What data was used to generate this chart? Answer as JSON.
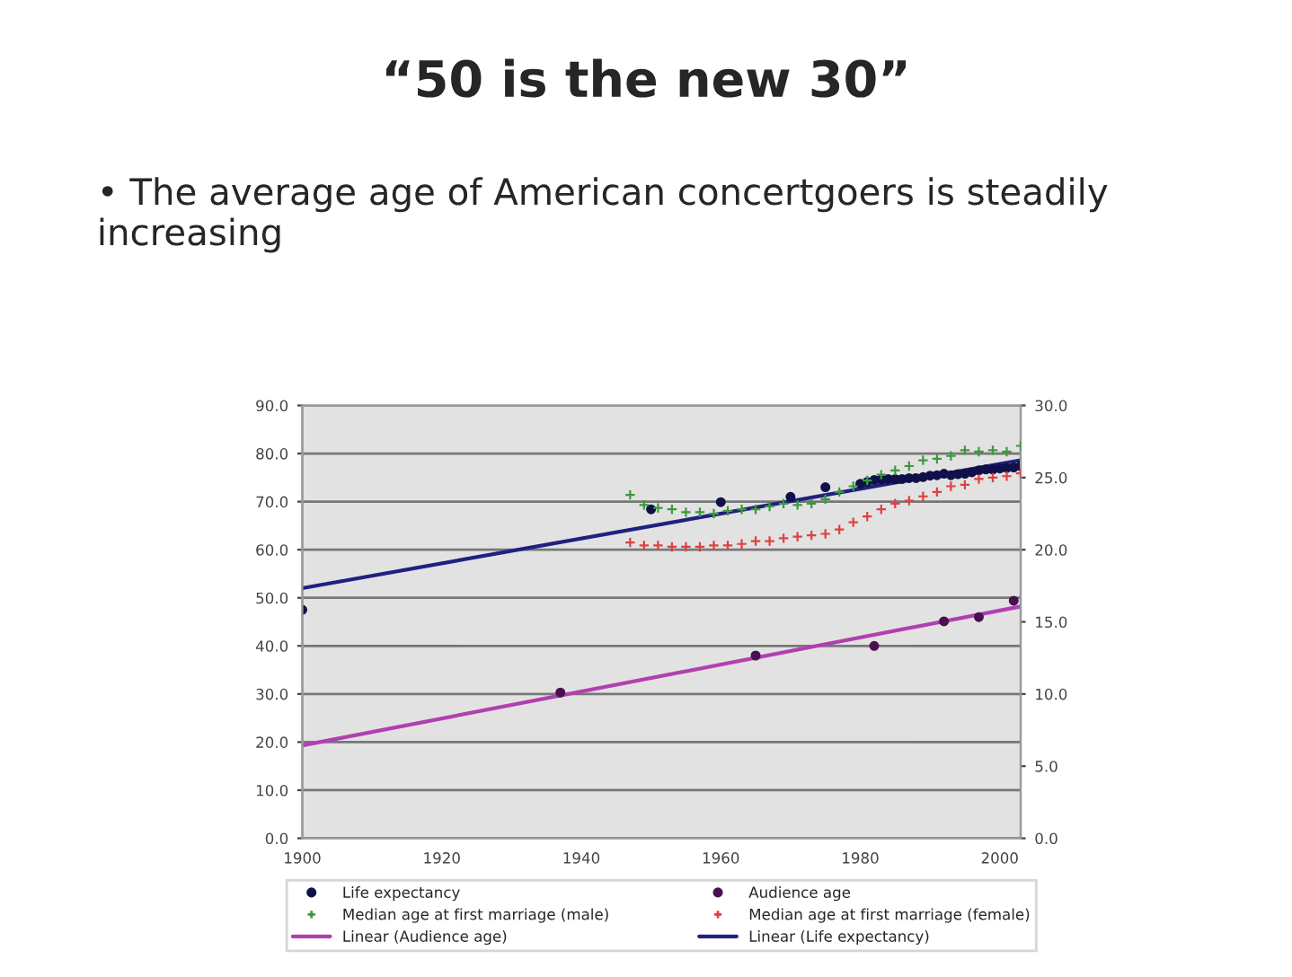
{
  "chart_data": {
    "type": "scatter",
    "title": "“50 is the new 30”",
    "subtitle": "• The average age of American concertgoers is steadily increasing",
    "xlim": [
      1900,
      2003
    ],
    "xticks": [
      1900,
      1920,
      1940,
      1960,
      1980,
      2000
    ],
    "ylim": [
      0,
      90
    ],
    "yticks": [
      {
        "value": 0,
        "label": "0.0"
      },
      {
        "value": 10,
        "label": "10.0"
      },
      {
        "value": 20,
        "label": "20.0"
      },
      {
        "value": 30,
        "label": "30.0"
      },
      {
        "value": 40,
        "label": "40.0"
      },
      {
        "value": 50,
        "label": "50.0"
      },
      {
        "value": 60,
        "label": "60.0"
      },
      {
        "value": 70,
        "label": "70.0"
      },
      {
        "value": 80,
        "label": "80.0"
      },
      {
        "value": 90,
        "label": "90.0"
      }
    ],
    "y2lim": [
      0,
      30
    ],
    "y2ticks": [
      {
        "value": 0,
        "label": "0.0"
      },
      {
        "value": 5,
        "label": "5.0"
      },
      {
        "value": 10,
        "label": "10.0"
      },
      {
        "value": 15,
        "label": "15.0"
      },
      {
        "value": 20,
        "label": "20.0"
      },
      {
        "value": 25,
        "label": "25.0"
      },
      {
        "value": 30,
        "label": "30.0"
      }
    ],
    "grid": "y",
    "legend": "bottom",
    "series": [
      {
        "name": "Life expectancy",
        "marker": "circle",
        "color": "#10104a",
        "x": [
          1900,
          1950,
          1960,
          1970,
          1975,
          1980,
          1981,
          1982,
          1983,
          1984,
          1985,
          1986,
          1987,
          1988,
          1989,
          1990,
          1991,
          1992,
          1993,
          1994,
          1995,
          1996,
          1997,
          1998,
          1999,
          2000,
          2001,
          2002,
          2003
        ],
        "values": [
          47.5,
          68.4,
          69.9,
          71.0,
          73.0,
          73.7,
          74.1,
          74.5,
          74.6,
          74.7,
          74.7,
          74.7,
          74.9,
          74.9,
          75.1,
          75.4,
          75.5,
          75.8,
          75.5,
          75.7,
          75.8,
          76.1,
          76.5,
          76.7,
          76.7,
          76.9,
          77.0,
          77.1,
          77.4
        ]
      },
      {
        "name": "Audience age",
        "marker": "circle",
        "color": "#4a1050",
        "x": [
          1937,
          1965,
          1982,
          1992,
          1997,
          2002
        ],
        "values": [
          30.3,
          38.0,
          40.0,
          45.1,
          46.0,
          49.4
        ]
      },
      {
        "name": "Median age at first marriage (male)",
        "marker": "cross",
        "axis": "y2",
        "color": "#3a9a3a",
        "x": [
          1947,
          1949,
          1951,
          1953,
          1955,
          1957,
          1959,
          1961,
          1963,
          1965,
          1967,
          1969,
          1971,
          1973,
          1975,
          1977,
          1979,
          1981,
          1983,
          1985,
          1987,
          1989,
          1991,
          1993,
          1995,
          1997,
          1999,
          2001,
          2003
        ],
        "values": [
          23.8,
          23.1,
          22.9,
          22.8,
          22.6,
          22.6,
          22.5,
          22.7,
          22.8,
          22.8,
          23.0,
          23.2,
          23.1,
          23.2,
          23.5,
          24.0,
          24.4,
          24.8,
          25.2,
          25.5,
          25.8,
          26.2,
          26.3,
          26.5,
          26.9,
          26.8,
          26.9,
          26.8,
          27.2
        ]
      },
      {
        "name": "Median age at first marriage (female)",
        "marker": "cross",
        "axis": "y2",
        "color": "#e04040",
        "x": [
          1947,
          1949,
          1951,
          1953,
          1955,
          1957,
          1959,
          1961,
          1963,
          1965,
          1967,
          1969,
          1971,
          1973,
          1975,
          1977,
          1979,
          1981,
          1983,
          1985,
          1987,
          1989,
          1991,
          1993,
          1995,
          1997,
          1999,
          2001,
          2003
        ],
        "values": [
          20.5,
          20.3,
          20.3,
          20.2,
          20.2,
          20.2,
          20.3,
          20.3,
          20.4,
          20.6,
          20.6,
          20.8,
          20.9,
          21.0,
          21.1,
          21.4,
          21.9,
          22.3,
          22.8,
          23.2,
          23.4,
          23.7,
          24.0,
          24.4,
          24.5,
          24.9,
          25.0,
          25.1,
          25.3
        ]
      },
      {
        "name": "Linear (Audience age)",
        "type": "line",
        "line_style": "solid",
        "color": "#b040b0",
        "x": [
          1900,
          2003
        ],
        "values": [
          19.3,
          48.2
        ]
      },
      {
        "name": "Linear (Life expectancy)",
        "type": "line",
        "line_style": "solid",
        "color": "#202080",
        "x": [
          1900,
          2003
        ],
        "values": [
          52.0,
          78.6
        ]
      }
    ]
  }
}
